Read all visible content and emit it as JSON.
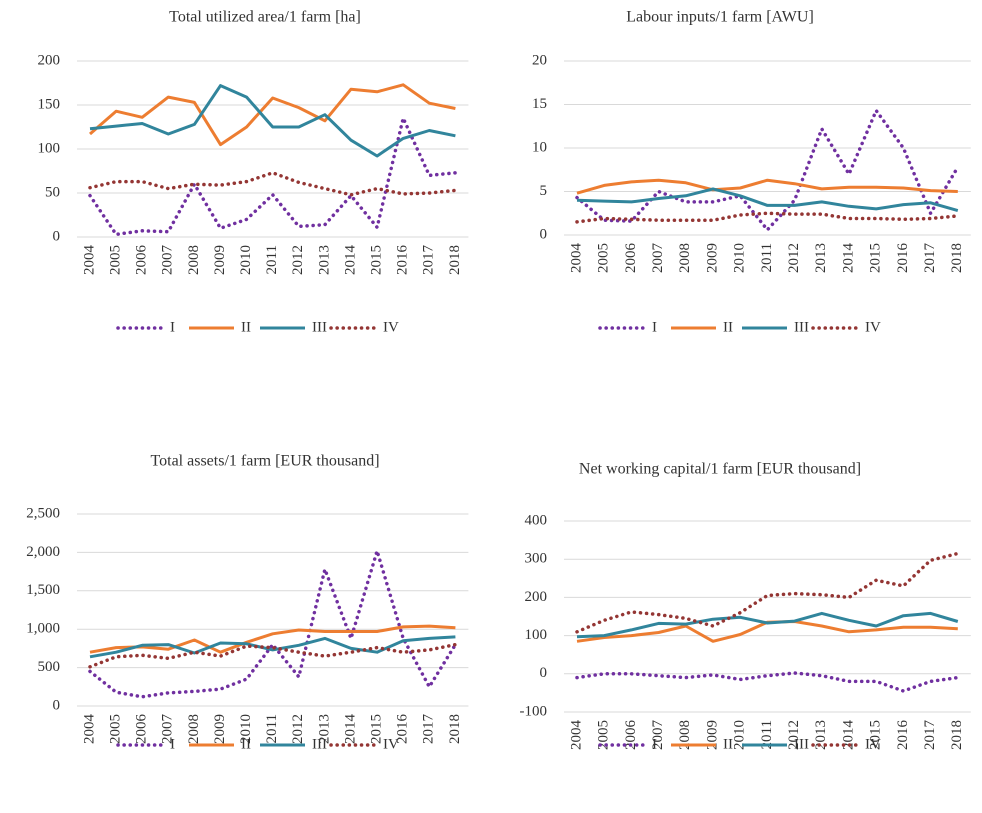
{
  "chart_data": [
    {
      "type": "line",
      "title": "Total utilized area/1 farm [ha]",
      "categories": [
        "2004",
        "2005",
        "2006",
        "2007",
        "2008",
        "2009",
        "2010",
        "2011",
        "2012",
        "2013",
        "2014",
        "2015",
        "2016",
        "2017",
        "2018"
      ],
      "ylim": [
        0,
        200
      ],
      "yticks": [
        0,
        50,
        100,
        150,
        200
      ],
      "grid": true,
      "legend": "bottom",
      "series": [
        {
          "name": "I",
          "color": "#7030a0",
          "line_style": "dotted",
          "values": [
            47,
            3,
            7,
            6,
            60,
            10,
            20,
            48,
            12,
            14,
            47,
            11,
            135,
            70,
            73
          ]
        },
        {
          "name": "II",
          "color": "#ed7d31",
          "line_style": "solid",
          "values": [
            117,
            143,
            136,
            159,
            153,
            105,
            125,
            158,
            147,
            132,
            168,
            165,
            173,
            152,
            146
          ]
        },
        {
          "name": "III",
          "color": "#31859c",
          "line_style": "solid",
          "values": [
            123,
            126,
            129,
            117,
            128,
            172,
            159,
            125,
            125,
            139,
            110,
            92,
            112,
            121,
            115
          ]
        },
        {
          "name": "IV",
          "color": "#943634",
          "line_style": "dotted",
          "values": [
            56,
            63,
            63,
            55,
            60,
            59,
            63,
            73,
            62,
            55,
            48,
            55,
            49,
            50,
            53
          ]
        }
      ]
    },
    {
      "type": "line",
      "title": "Labour inputs/1 farm [AWU]",
      "categories": [
        "2004",
        "2005",
        "2006",
        "2007",
        "2008",
        "2009",
        "2010",
        "2011",
        "2012",
        "2013",
        "2014",
        "2015",
        "2016",
        "2017",
        "2018"
      ],
      "ylim": [
        0,
        20
      ],
      "yticks": [
        0,
        5,
        10,
        15,
        20
      ],
      "grid": true,
      "legend": "bottom",
      "series": [
        {
          "name": "I",
          "color": "#7030a0",
          "line_style": "dotted",
          "values": [
            4.3,
            1.7,
            1.6,
            5.0,
            3.8,
            3.8,
            4.5,
            0.6,
            4.0,
            12.2,
            7.0,
            14.3,
            10.0,
            2.5,
            7.8
          ]
        },
        {
          "name": "II",
          "color": "#ed7d31",
          "line_style": "solid",
          "values": [
            4.8,
            5.7,
            6.1,
            6.3,
            6.0,
            5.2,
            5.4,
            6.3,
            5.9,
            5.3,
            5.5,
            5.5,
            5.4,
            5.1,
            5.0
          ]
        },
        {
          "name": "III",
          "color": "#31859c",
          "line_style": "solid",
          "values": [
            4.0,
            3.9,
            3.8,
            4.2,
            4.5,
            5.3,
            4.5,
            3.4,
            3.4,
            3.8,
            3.3,
            3.0,
            3.5,
            3.7,
            2.8
          ]
        },
        {
          "name": "IV",
          "color": "#943634",
          "line_style": "dotted",
          "values": [
            1.5,
            1.9,
            1.8,
            1.7,
            1.7,
            1.7,
            2.3,
            2.5,
            2.4,
            2.4,
            1.9,
            1.9,
            1.8,
            1.9,
            2.2
          ]
        }
      ]
    },
    {
      "type": "line",
      "title": "Total assets/1 farm [EUR thousand]",
      "categories": [
        "2004",
        "2005",
        "2006",
        "2007",
        "2008",
        "2009",
        "2010",
        "2011",
        "2012",
        "2013",
        "2014",
        "2015",
        "2016",
        "2017",
        "2018"
      ],
      "ylim": [
        0,
        2500
      ],
      "yticks": [
        0,
        500,
        {
          "value": 1000,
          "label": "1,000"
        },
        {
          "value": 1500,
          "label": "1,500"
        },
        {
          "value": 2000,
          "label": "2,000"
        },
        {
          "value": 2500,
          "label": "2,500"
        }
      ],
      "grid": true,
      "legend": "bottom",
      "series": [
        {
          "name": "I",
          "color": "#7030a0",
          "line_style": "dotted",
          "values": [
            450,
            180,
            120,
            170,
            190,
            220,
            350,
            800,
            380,
            1780,
            880,
            2020,
            880,
            250,
            800
          ]
        },
        {
          "name": "II",
          "color": "#ed7d31",
          "line_style": "solid",
          "values": [
            700,
            760,
            770,
            740,
            860,
            700,
            830,
            940,
            990,
            970,
            970,
            970,
            1030,
            1040,
            1020
          ]
        },
        {
          "name": "III",
          "color": "#31859c",
          "line_style": "solid",
          "values": [
            640,
            700,
            790,
            800,
            690,
            820,
            810,
            730,
            790,
            880,
            750,
            700,
            850,
            880,
            900
          ]
        },
        {
          "name": "IV",
          "color": "#943634",
          "line_style": "dotted",
          "values": [
            510,
            640,
            660,
            620,
            700,
            650,
            780,
            760,
            700,
            650,
            700,
            760,
            700,
            730,
            800
          ]
        }
      ]
    },
    {
      "type": "line",
      "title": "Net working capital/1 farm [EUR thousand]",
      "categories": [
        "2004",
        "2005",
        "2006",
        "2007",
        "2008",
        "2009",
        "2010",
        "2011",
        "2012",
        "2013",
        "2014",
        "2015",
        "2016",
        "2017",
        "2018"
      ],
      "ylim": [
        -100,
        400
      ],
      "yticks": [
        -100,
        0,
        100,
        200,
        300,
        400
      ],
      "grid": true,
      "legend": "bottom",
      "series": [
        {
          "name": "I",
          "color": "#7030a0",
          "line_style": "dotted",
          "values": [
            -10,
            0,
            0,
            -5,
            -10,
            -3,
            -15,
            -5,
            2,
            -5,
            -20,
            -20,
            -45,
            -20,
            -10
          ]
        },
        {
          "name": "II",
          "color": "#ed7d31",
          "line_style": "solid",
          "values": [
            85,
            95,
            100,
            108,
            125,
            85,
            103,
            135,
            137,
            125,
            110,
            115,
            122,
            122,
            118
          ]
        },
        {
          "name": "III",
          "color": "#31859c",
          "line_style": "solid",
          "values": [
            97,
            100,
            115,
            132,
            130,
            143,
            148,
            133,
            138,
            158,
            140,
            125,
            152,
            158,
            137
          ]
        },
        {
          "name": "IV",
          "color": "#943634",
          "line_style": "dotted",
          "values": [
            110,
            140,
            162,
            155,
            145,
            125,
            160,
            205,
            210,
            207,
            200,
            245,
            230,
            297,
            315
          ]
        }
      ]
    }
  ]
}
